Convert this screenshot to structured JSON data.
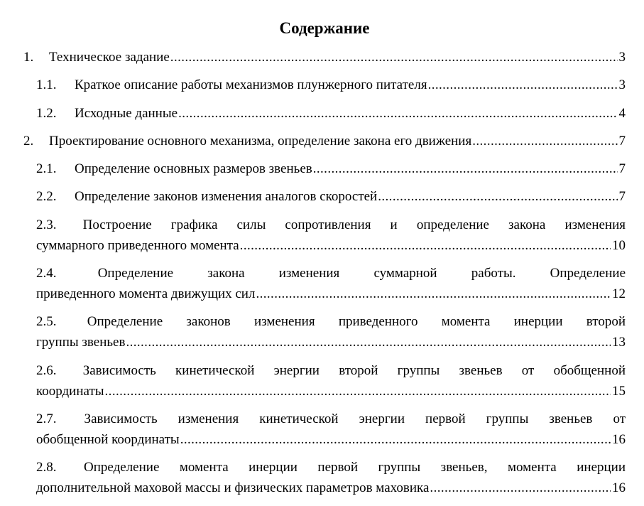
{
  "heading": "Содержание",
  "entries": [
    {
      "num": "1.",
      "level": 1,
      "lines": [
        "Техническое задание"
      ],
      "page": "3"
    },
    {
      "num": "1.1.",
      "level": 2,
      "lines": [
        "Краткое описание работы механизмов плунжерного питателя"
      ],
      "page": "3"
    },
    {
      "num": "1.2.",
      "level": 2,
      "lines": [
        "Исходные данные"
      ],
      "page": "4"
    },
    {
      "num": "2.",
      "level": 1,
      "lines": [
        "Проектирование основного механизма, определение закона его движения"
      ],
      "page": "7"
    },
    {
      "num": "2.1.",
      "level": 2,
      "lines": [
        "Определение основных размеров звеньев"
      ],
      "page": "7"
    },
    {
      "num": "2.2.",
      "level": 2,
      "lines": [
        "Определение законов изменения аналогов скоростей"
      ],
      "page": "7"
    },
    {
      "num": "2.3.",
      "level": 2,
      "lines": [
        "Построение графика силы сопротивления и определение закона изменения",
        "суммарного приведенного момента"
      ],
      "page": "10"
    },
    {
      "num": "2.4.",
      "level": 2,
      "lines": [
        "Определение закона изменения суммарной работы. Определение",
        "приведенного момента движущих сил"
      ],
      "page": "12"
    },
    {
      "num": "2.5.",
      "level": 2,
      "lines": [
        "Определение законов изменения приведенного момента инерции второй",
        "группы звеньев"
      ],
      "page": "13"
    },
    {
      "num": "2.6.",
      "level": 2,
      "lines": [
        "Зависимость кинетической энергии второй группы звеньев от обобщенной",
        "координаты"
      ],
      "page": "15"
    },
    {
      "num": "2.7.",
      "level": 2,
      "lines": [
        "Зависимость изменения кинетической энергии первой группы звеньев от",
        "обобщенной координаты"
      ],
      "page": "16"
    },
    {
      "num": "2.8.",
      "level": 2,
      "lines": [
        "Определение момента инерции первой группы звеньев, момента инерции",
        "дополнительной маховой массы и физических параметров маховика"
      ],
      "page": "16"
    }
  ]
}
